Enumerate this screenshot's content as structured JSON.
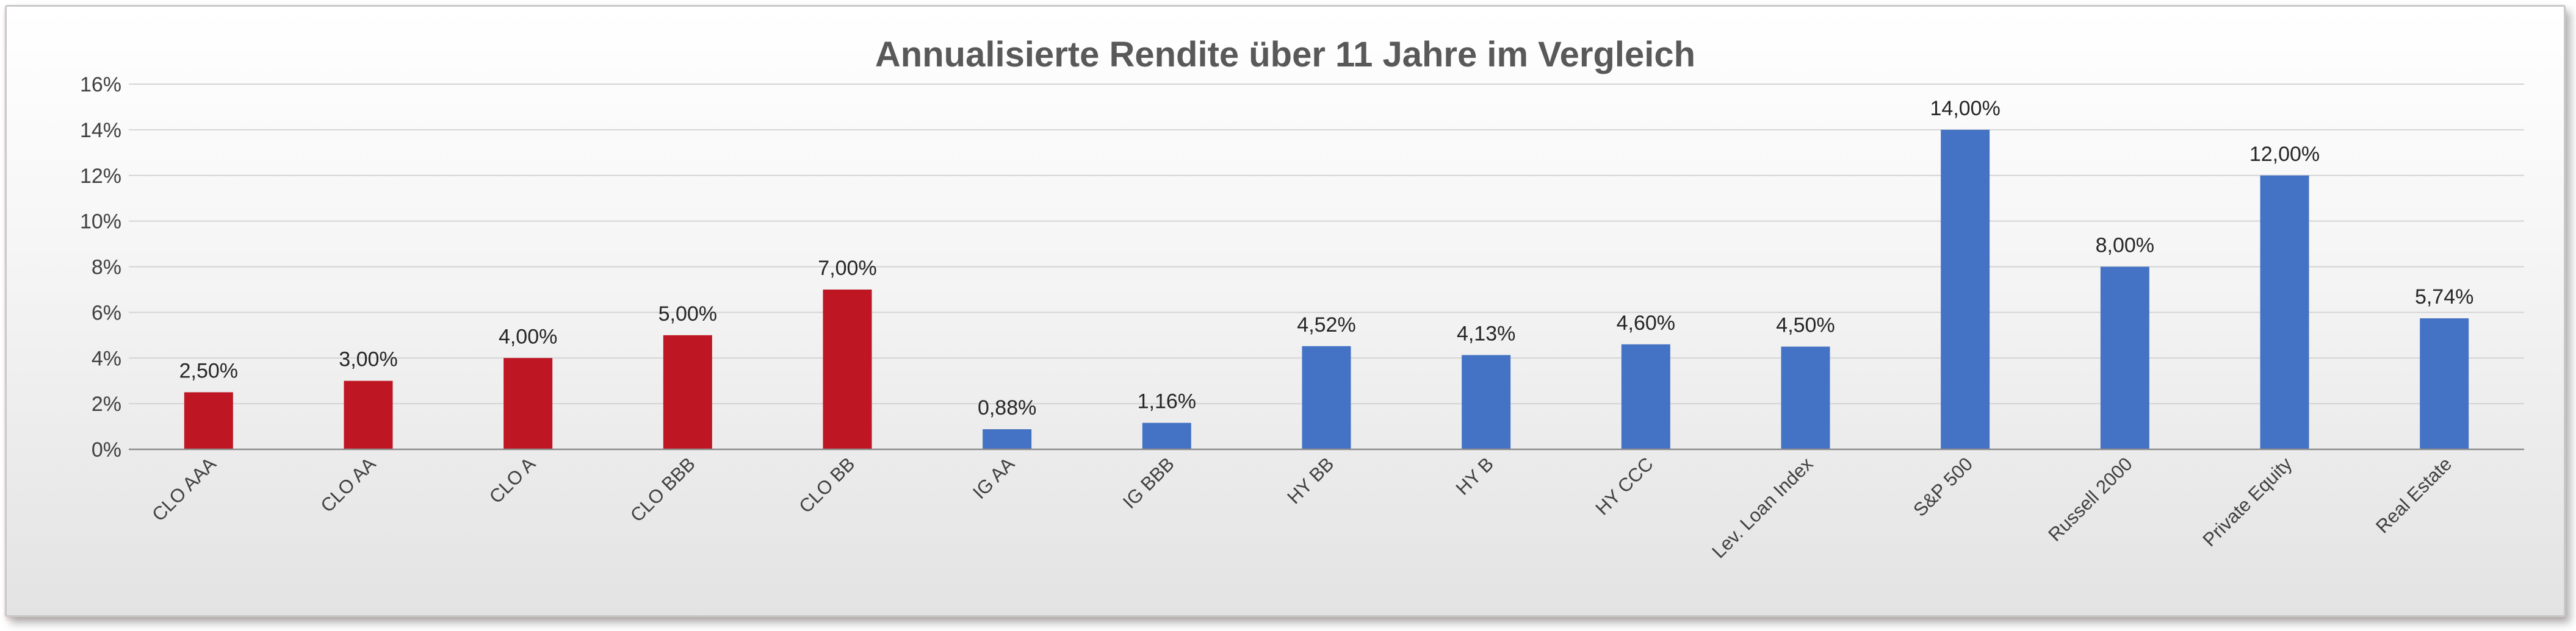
{
  "chart_data": {
    "type": "bar",
    "title": "Annualisierte Rendite über 11 Jahre im Vergleich",
    "xlabel": "",
    "ylabel": "",
    "ylim": [
      0,
      16
    ],
    "y_ticks": [
      "0%",
      "2%",
      "4%",
      "6%",
      "8%",
      "10%",
      "12%",
      "14%",
      "16%"
    ],
    "y_tick_values": [
      0,
      2,
      4,
      6,
      8,
      10,
      12,
      14,
      16
    ],
    "grid": true,
    "legend": "none",
    "categories": [
      "CLO AAA",
      "CLO AA",
      "CLO A",
      "CLO BBB",
      "CLO BB",
      "IG AA",
      "IG BBB",
      "HY BB",
      "HY B",
      "HY CCC",
      "Lev. Loan Index",
      "S&P 500",
      "Russell 2000",
      "Private Equity",
      "Real Estate"
    ],
    "values": [
      2.5,
      3.0,
      4.0,
      5.0,
      7.0,
      0.88,
      1.16,
      4.52,
      4.13,
      4.6,
      4.5,
      14.0,
      8.0,
      12.0,
      5.74
    ],
    "data_labels": [
      "2,50%",
      "3,00%",
      "4,00%",
      "5,00%",
      "7,00%",
      "0,88%",
      "1,16%",
      "4,52%",
      "4,13%",
      "4,60%",
      "4,50%",
      "14,00%",
      "8,00%",
      "12,00%",
      "5,74%"
    ],
    "bar_colors": [
      "#be1622",
      "#be1622",
      "#be1622",
      "#be1622",
      "#be1622",
      "#4472c4",
      "#4472c4",
      "#4472c4",
      "#4472c4",
      "#4472c4",
      "#4472c4",
      "#4472c4",
      "#4472c4",
      "#4472c4",
      "#4472c4"
    ]
  }
}
